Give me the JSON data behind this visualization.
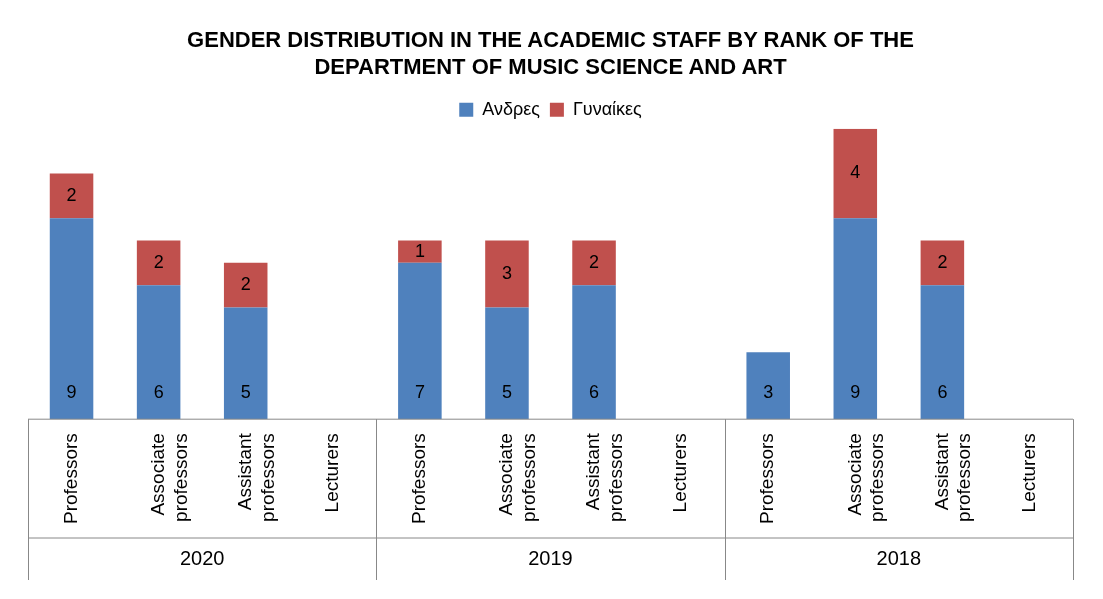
{
  "chart_data": {
    "type": "bar",
    "title": "GENDER DISTRIBUTION IN THE ACADEMIC STAFF BY RANK OF THE DEPARTMENT OF MUSIC SCIENCE AND ART",
    "stacked": true,
    "legend": "top",
    "grid": false,
    "data_labels": true,
    "tick_labels": "x",
    "categories": [
      "Professors",
      "Associate professors",
      "Assistant professors",
      "Lecturers",
      "Professors",
      "Associate professors",
      "Assistant professors",
      "Lecturers",
      "Professors",
      "Associate professors",
      "Assistant professors",
      "Lecturers"
    ],
    "series": [
      {
        "name": "Ανδρες",
        "color": "#4f81bd",
        "values": [
          9,
          6,
          5,
          null,
          7,
          5,
          6,
          null,
          3,
          9,
          6,
          null
        ]
      },
      {
        "name": "Γυναίκες",
        "color": "#c0504d",
        "values": [
          2,
          2,
          2,
          null,
          1,
          3,
          2,
          null,
          null,
          4,
          2,
          null
        ]
      }
    ],
    "annotations": [
      "2020",
      "2019",
      "2018"
    ]
  }
}
